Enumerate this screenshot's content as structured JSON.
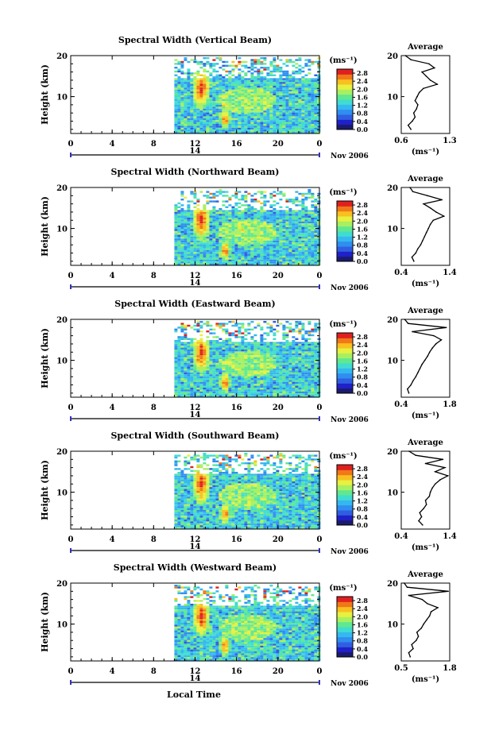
{
  "figure": {
    "xlabel": "Local Time",
    "date_label": "Nov 2006",
    "day_label": "14",
    "colorbar_unit": "(ms⁻¹)",
    "colorbar_ticks": [
      "0.0",
      "0.4",
      "0.8",
      "1.2",
      "1.6",
      "2.0",
      "2.4",
      "2.8"
    ],
    "colormap": [
      "#1a1a6e",
      "#2020c8",
      "#2f5fe0",
      "#2f8ef0",
      "#35b8f0",
      "#40dcd0",
      "#60e890",
      "#a8f060",
      "#e8f040",
      "#f8c020",
      "#f07818",
      "#e02020"
    ],
    "avg_title": "Average",
    "avg_xlabel": "(ms⁻¹)"
  },
  "chart_data": [
    {
      "type": "heatmap",
      "title": "Spectral Width (Vertical Beam)",
      "ylabel": "Height (km)",
      "x_ticks": [
        "0",
        "4",
        "8",
        "12",
        "16",
        "20",
        "0"
      ],
      "y_ticks": [
        "10",
        "20"
      ],
      "xlim": [
        0,
        24
      ],
      "ylim": [
        1,
        20
      ],
      "data_start_hour": 10,
      "colorbar": {
        "range": [
          0,
          3.0
        ],
        "ticks": [
          "0.0",
          "0.4",
          "0.8",
          "1.2",
          "1.6",
          "2.0",
          "2.4",
          "2.8"
        ]
      },
      "average_profile": {
        "title": "Average",
        "x_ticks": [
          "0.6",
          "1.3"
        ],
        "xlim": [
          0.6,
          1.3
        ],
        "y_ticks": [
          "10",
          "20"
        ],
        "height": [
          2,
          3,
          4,
          5,
          6,
          7,
          8,
          9,
          10,
          11,
          12,
          13,
          14,
          15,
          16,
          17,
          18,
          19,
          20
        ],
        "width": [
          0.74,
          0.7,
          0.76,
          0.8,
          0.78,
          0.82,
          0.84,
          0.8,
          0.83,
          0.86,
          0.92,
          1.12,
          1.02,
          0.96,
          0.9,
          1.08,
          1.0,
          0.74,
          0.66
        ]
      }
    },
    {
      "type": "heatmap",
      "title": "Spectral Width (Northward Beam)",
      "ylabel": "Height (km)",
      "x_ticks": [
        "0",
        "4",
        "8",
        "12",
        "16",
        "20",
        "0"
      ],
      "y_ticks": [
        "10",
        "20"
      ],
      "xlim": [
        0,
        24
      ],
      "ylim": [
        1,
        20
      ],
      "data_start_hour": 10,
      "colorbar": {
        "range": [
          0,
          3.0
        ],
        "ticks": [
          "0.0",
          "0.4",
          "0.8",
          "1.2",
          "1.6",
          "2.0",
          "2.4",
          "2.8"
        ]
      },
      "average_profile": {
        "title": "Average",
        "x_ticks": [
          "0.4",
          "1.4"
        ],
        "xlim": [
          0.4,
          1.4
        ],
        "y_ticks": [
          "10",
          "20"
        ],
        "height": [
          2,
          3,
          4,
          5,
          6,
          7,
          8,
          9,
          10,
          11,
          12,
          13,
          14,
          15,
          16,
          17,
          18,
          19,
          20
        ],
        "width": [
          0.66,
          0.62,
          0.7,
          0.74,
          0.8,
          0.84,
          0.88,
          0.92,
          0.96,
          1.0,
          1.06,
          1.28,
          1.12,
          1.0,
          0.86,
          1.24,
          0.94,
          0.64,
          0.58
        ]
      }
    },
    {
      "type": "heatmap",
      "title": "Spectral Width (Eastward Beam)",
      "ylabel": "Height (km)",
      "x_ticks": [
        "0",
        "4",
        "8",
        "12",
        "16",
        "20",
        "0"
      ],
      "y_ticks": [
        "10",
        "20"
      ],
      "xlim": [
        0,
        24
      ],
      "ylim": [
        1,
        20
      ],
      "data_start_hour": 10,
      "colorbar": {
        "range": [
          0,
          3.0
        ],
        "ticks": [
          "0.0",
          "0.4",
          "0.8",
          "1.2",
          "1.6",
          "2.0",
          "2.4",
          "2.8"
        ]
      },
      "average_profile": {
        "title": "Average",
        "x_ticks": [
          "0.4",
          "1.8"
        ],
        "xlim": [
          0.4,
          1.8
        ],
        "y_ticks": [
          "10",
          "20"
        ],
        "height": [
          2,
          3,
          4,
          5,
          6,
          7,
          8,
          9,
          10,
          11,
          12,
          13,
          14,
          15,
          16,
          17,
          18,
          19,
          20
        ],
        "width": [
          0.62,
          0.58,
          0.68,
          0.74,
          0.82,
          0.88,
          0.94,
          1.0,
          1.08,
          1.16,
          1.22,
          1.3,
          1.4,
          1.56,
          1.34,
          0.72,
          1.7,
          0.6,
          0.5
        ]
      }
    },
    {
      "type": "heatmap",
      "title": "Spectral Width (Southward Beam)",
      "ylabel": "Height (km)",
      "x_ticks": [
        "0",
        "4",
        "8",
        "12",
        "16",
        "20",
        "0"
      ],
      "y_ticks": [
        "10",
        "20"
      ],
      "xlim": [
        0,
        24
      ],
      "ylim": [
        1,
        20
      ],
      "data_start_hour": 10,
      "colorbar": {
        "range": [
          0,
          3.0
        ],
        "ticks": [
          "0.0",
          "0.4",
          "0.8",
          "1.2",
          "1.6",
          "2.0",
          "2.4",
          "2.8"
        ]
      },
      "average_profile": {
        "title": "Average",
        "x_ticks": [
          "0.4",
          "1.4"
        ],
        "xlim": [
          0.4,
          1.4
        ],
        "y_ticks": [
          "10",
          "20"
        ],
        "height": [
          2,
          3,
          4,
          5,
          6,
          7,
          8,
          9,
          10,
          11,
          12,
          13,
          14,
          15,
          16,
          17,
          18,
          19,
          20
        ],
        "width": [
          0.84,
          0.76,
          0.82,
          0.78,
          0.86,
          0.92,
          0.9,
          0.98,
          1.0,
          1.04,
          1.1,
          1.2,
          1.36,
          1.1,
          1.3,
          0.9,
          1.26,
          0.7,
          0.56
        ]
      }
    },
    {
      "type": "heatmap",
      "title": "Spectral Width (Westward Beam)",
      "ylabel": "Height (km)",
      "x_ticks": [
        "0",
        "4",
        "8",
        "12",
        "16",
        "20",
        "0"
      ],
      "y_ticks": [
        "10",
        "20"
      ],
      "xlim": [
        0,
        24
      ],
      "ylim": [
        1,
        20
      ],
      "data_start_hour": 10,
      "colorbar": {
        "range": [
          0,
          3.0
        ],
        "ticks": [
          "0.0",
          "0.4",
          "0.8",
          "1.2",
          "1.6",
          "2.0",
          "2.4",
          "2.8"
        ]
      },
      "average_profile": {
        "title": "Average",
        "x_ticks": [
          "0.5",
          "1.8"
        ],
        "xlim": [
          0.5,
          1.8
        ],
        "y_ticks": [
          "10",
          "20"
        ],
        "height": [
          2,
          3,
          4,
          5,
          6,
          7,
          8,
          9,
          10,
          11,
          12,
          13,
          14,
          15,
          16,
          17,
          18,
          19,
          20
        ],
        "width": [
          0.74,
          0.7,
          0.82,
          0.78,
          0.9,
          0.96,
          0.92,
          1.04,
          1.1,
          1.18,
          1.26,
          1.3,
          1.48,
          1.2,
          1.06,
          0.7,
          1.76,
          0.66,
          0.58
        ]
      }
    }
  ]
}
